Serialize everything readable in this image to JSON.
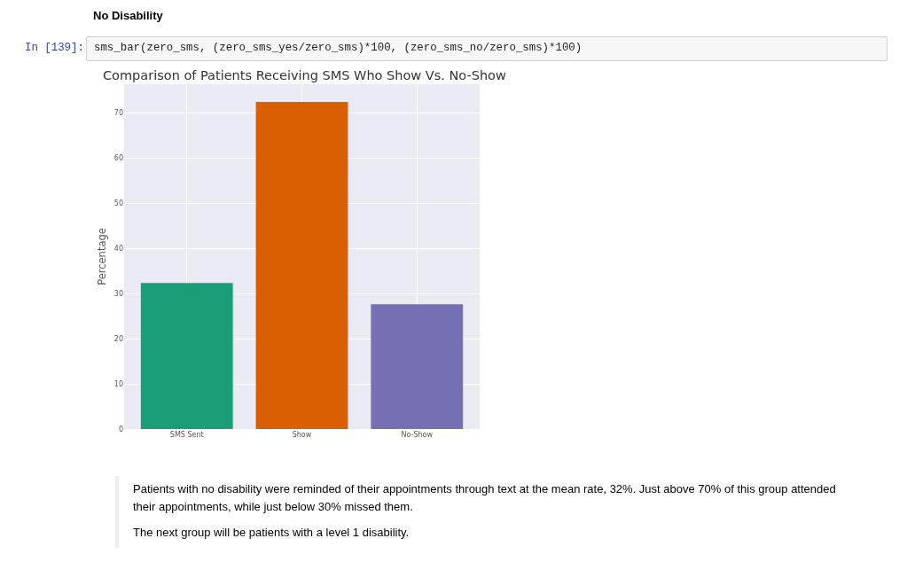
{
  "chart_data": {
    "type": "bar",
    "title": "Comparison of Patients Receiving SMS Who Show Vs. No-Show",
    "ylabel": "Percentage",
    "categories": [
      "SMS Sent",
      "Show",
      "No-Show"
    ],
    "values": [
      32.3,
      72.4,
      27.6
    ],
    "colors": [
      "#1b9e77",
      "#d95f02",
      "#7570b3"
    ],
    "ylim": [
      0,
      76.3
    ],
    "yticks": [
      0,
      10,
      20,
      30,
      40,
      50,
      60,
      70
    ],
    "grid": true,
    "annotations": [
      "No Disability",
      "In [139]:",
      "sms_bar(zero_sms, (zero_sms_yes/zero_sms)*100, (zero_sms_no/zero_sms)*100)",
      "Patients with no disability were reminded of their appointments through text at the mean rate, 32%. Just above 70% of this group attended their appointments, while just below 30% missed them.",
      "The next group will be patients with a level 1 disability."
    ]
  }
}
